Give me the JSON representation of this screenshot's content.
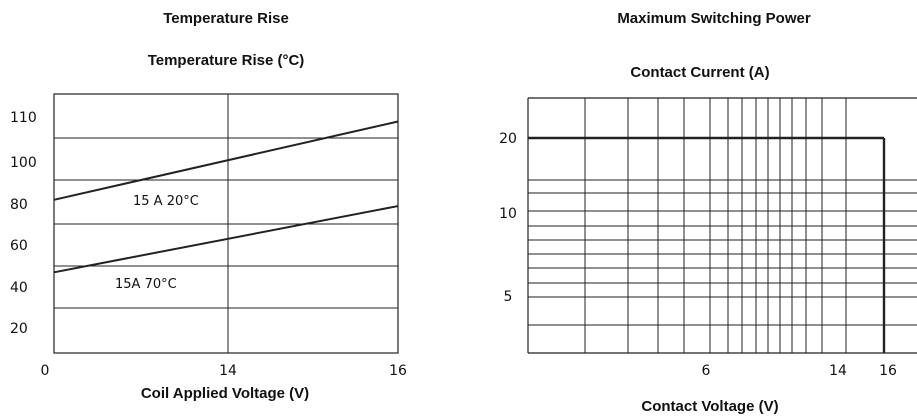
{
  "chart_data": [
    {
      "type": "line",
      "title": "Temperature Rise",
      "ylabel": "Temperature Rise (°C)",
      "xlabel": "Coil Applied Voltage (V)",
      "x_tick_labels": [
        "0",
        "14",
        "16"
      ],
      "y_tick_labels": [
        "110",
        "100",
        "80",
        "60",
        "40",
        "20"
      ],
      "series": [
        {
          "label": "15 A 20°C",
          "y_start": 82,
          "y_end": 109
        },
        {
          "label": "15A 70°C",
          "y_start": 47,
          "y_end": 79
        }
      ],
      "grid": true
    },
    {
      "type": "line",
      "title": "Maximum Switching Power",
      "ylabel": "Contact Current (A)",
      "xlabel": "Contact Voltage (V)",
      "x_tick_labels": [
        "6",
        "14",
        "16"
      ],
      "y_tick_labels": [
        "20",
        "10",
        "5"
      ],
      "y_scale": "log",
      "boundary": {
        "current_limit": 20,
        "voltage_limit": 16
      },
      "grid": true
    }
  ]
}
